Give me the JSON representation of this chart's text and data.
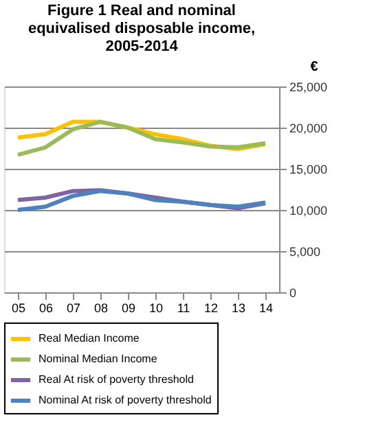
{
  "chart_data": {
    "type": "line",
    "title": "Figure 1 Real and nominal\nequivalised disposable income,\n2005-2014",
    "ylabel": "€",
    "categories": [
      "05",
      "06",
      "07",
      "08",
      "09",
      "10",
      "11",
      "12",
      "13",
      "14"
    ],
    "series": [
      {
        "name": "Real Median Income",
        "color": "#ffc000",
        "values": [
          18800,
          19200,
          20700,
          20700,
          20000,
          19200,
          18600,
          17800,
          17400,
          18000
        ]
      },
      {
        "name": "Nominal Median Income",
        "color": "#9bbb59",
        "values": [
          16700,
          17600,
          19800,
          20700,
          20000,
          18600,
          18200,
          17700,
          17600,
          18100
        ]
      },
      {
        "name": "Real At risk of poverty threshold",
        "color": "#8064a2",
        "values": [
          11200,
          11500,
          12300,
          12400,
          12000,
          11500,
          11000,
          10600,
          10200,
          10800
        ]
      },
      {
        "name": "Nominal At risk of poverty threshold",
        "color": "#4f81bd",
        "values": [
          10000,
          10400,
          11700,
          12300,
          12000,
          11200,
          11000,
          10600,
          10400,
          10900
        ]
      }
    ],
    "ylim": [
      0,
      25000
    ],
    "yticks": [
      0,
      {
        "value": 5000,
        "label": "5,000"
      },
      {
        "value": 10000,
        "label": "10,000"
      },
      {
        "value": 15000,
        "label": "15,000"
      },
      {
        "value": 20000,
        "label": "20,000"
      },
      {
        "value": 25000,
        "label": "25,000"
      }
    ],
    "grid": "y",
    "legend": "bottom",
    "line_style": "solid",
    "marker": "none"
  }
}
